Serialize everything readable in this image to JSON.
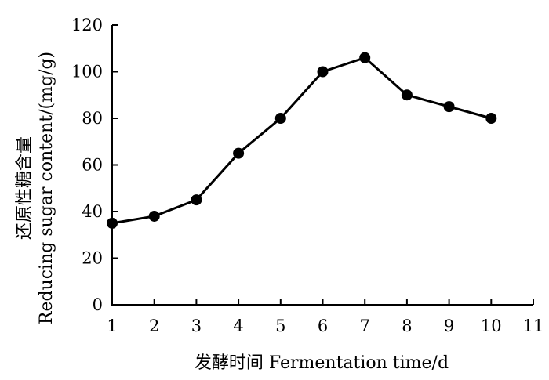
{
  "chart_data": {
    "type": "line",
    "xlabel": "发酵时间  Fermentation time/d",
    "ylabel_line1": "还原性糖含量",
    "ylabel_line2": "Reducing sugar content/(mg/g)",
    "xlim": [
      1,
      11
    ],
    "ylim": [
      0,
      120
    ],
    "x_ticks": [
      1,
      2,
      3,
      4,
      5,
      6,
      7,
      8,
      9,
      10,
      11
    ],
    "y_ticks": [
      0,
      20,
      40,
      60,
      80,
      100,
      120
    ],
    "grid": false,
    "series": [
      {
        "x": [
          1,
          2,
          3,
          4,
          5,
          6,
          7,
          8,
          9,
          10
        ],
        "values": [
          35,
          38,
          45,
          65,
          80,
          100,
          106,
          90,
          85,
          80
        ]
      }
    ]
  }
}
